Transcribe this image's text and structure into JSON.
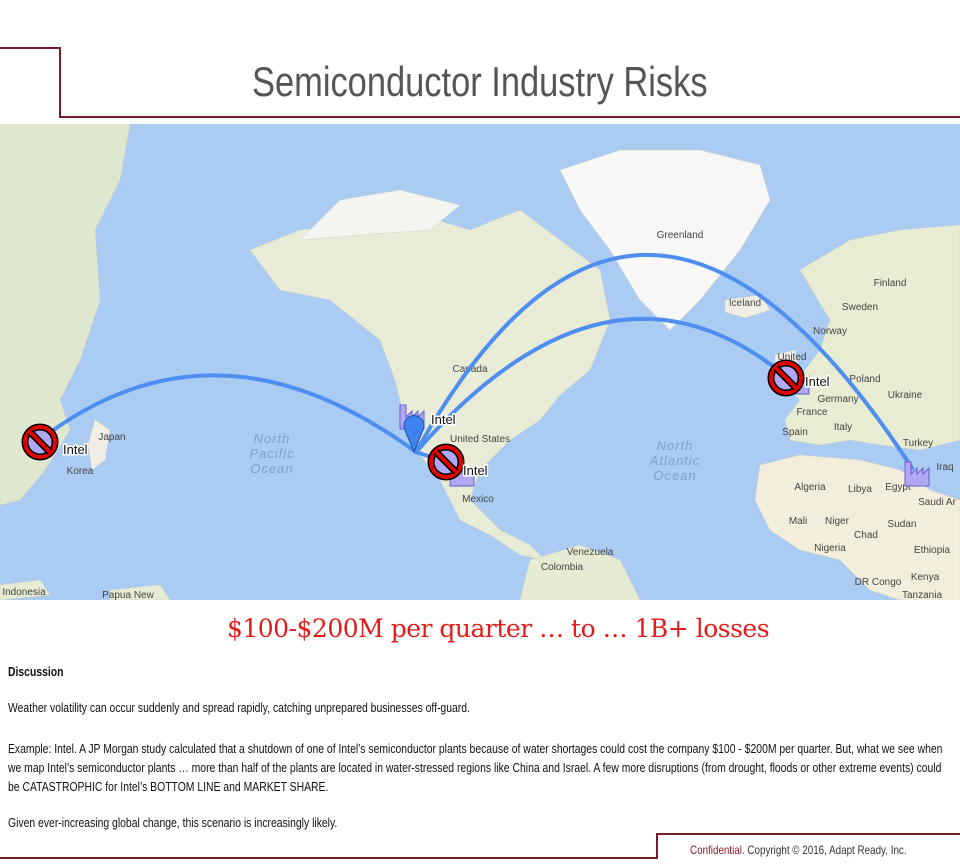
{
  "header": {
    "title": "Semiconductor Industry Risks"
  },
  "map": {
    "colors": {
      "ocean": "#aacbf2",
      "land": "#f1eee6",
      "route": "#4d8ef0",
      "prohibited": "#e00000",
      "factory": "#b0a8f5"
    },
    "oceans": [
      {
        "lines": [
          "North",
          "Pacific",
          "Ocean"
        ]
      },
      {
        "lines": [
          "North",
          "Atlantic",
          "Ocean"
        ]
      }
    ],
    "place_labels": [
      "Canada",
      "United States",
      "Mexico",
      "Greenland",
      "Iceland",
      "Finland",
      "Sweden",
      "Norway",
      "United",
      "Poland",
      "Germany",
      "Ukraine",
      "France",
      "Spain",
      "Italy",
      "Turkey",
      "Algeria",
      "Libya",
      "Egypt",
      "Iraq",
      "Saudi Ar",
      "Mali",
      "Niger",
      "Sudan",
      "Chad",
      "Nigeria",
      "Ethiopia",
      "Venezuela",
      "Colombia",
      "DR Congo",
      "Kenya",
      "Tanzania",
      "Indonesia",
      "Papua New",
      "Japan",
      "Korea"
    ],
    "site_label": "Intel",
    "icons": {
      "marker": "prohibited-sign-icon",
      "plant": "factory-icon",
      "origin": "map-pin-icon"
    }
  },
  "headline": "$100-$200M per quarter … to … 1B+ losses",
  "discussion": {
    "heading": "Discussion",
    "paragraphs": [
      "Weather volatility can occur suddenly and spread rapidly, catching unprepared  businesses off-guard.",
      "Example: Intel. A JP Morgan study calculated that a shutdown of one of Intel’s semiconductor plants because of water shortages could cost the company $100 - $200M per quarter.  But, what we see when we map Intel’s semiconductor plants … more than  half of the plants are located in water-stressed  regions like China and Israel. A few more disruptions (from drought,  floods or other extreme events) could be CATASTROPHIC  for Intel’s BOTTOM LINE and MARKET SHARE.",
      "Given ever-increasing  global  change, this scenario is increasingly likely."
    ]
  },
  "footer": {
    "confidential": "Confidential",
    "copyright": ". Copyright © 2016, Adapt Ready, Inc."
  }
}
